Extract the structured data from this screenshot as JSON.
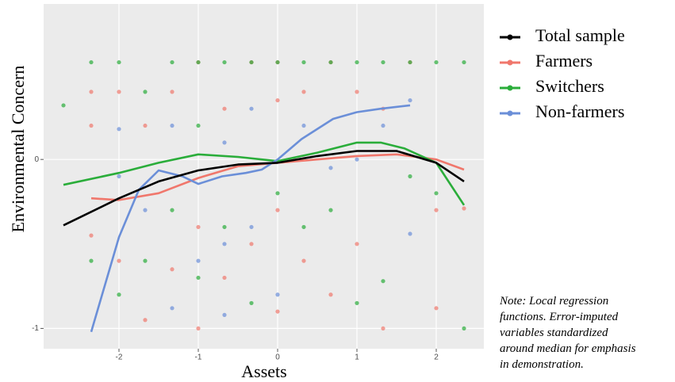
{
  "chart_data": {
    "type": "line",
    "xlabel": "Assets",
    "ylabel": "Environmental Concern",
    "xlim": [
      -2.95,
      2.6
    ],
    "ylim": [
      -1.12,
      0.92
    ],
    "xticks": [
      -2,
      -1,
      0,
      1,
      2
    ],
    "yticks": [
      -1,
      0
    ],
    "grid": true,
    "legend": "right",
    "note": [
      "Note:  Local regression",
      "functions. Error-imputed",
      "variables standardized",
      "around median for emphasis",
      "in demonstration."
    ],
    "series": [
      {
        "name": "Total sample",
        "color": "#000000",
        "x": [
          -2.7,
          -2,
          -1.5,
          -1,
          -0.5,
          0,
          0.5,
          1,
          1.5,
          2,
          2.35
        ],
        "values": [
          -0.39,
          -0.23,
          -0.13,
          -0.065,
          -0.03,
          -0.02,
          0.02,
          0.05,
          0.05,
          -0.02,
          -0.13
        ]
      },
      {
        "name": "Farmers",
        "color": "#f0776c",
        "x": [
          -2.35,
          -2,
          -1.5,
          -1,
          -0.5,
          0,
          0.5,
          1,
          1.5,
          2,
          2.35
        ],
        "values": [
          -0.23,
          -0.24,
          -0.2,
          -0.11,
          -0.04,
          -0.02,
          0,
          0.02,
          0.03,
          0,
          -0.06
        ],
        "points": {
          "x": [
            -2.35,
            -2.35,
            -2.35,
            -2,
            -2,
            -1.67,
            -1.67,
            -1.33,
            -1.33,
            -1,
            -1,
            -1,
            -0.67,
            -0.67,
            -0.33,
            -0.33,
            0,
            0,
            0,
            0,
            0.33,
            0.33,
            0.67,
            0.67,
            1,
            1,
            1.33,
            1.33,
            1.67,
            2,
            2,
            2.35
          ],
          "values": [
            0.4,
            0.2,
            -0.45,
            0.4,
            -0.6,
            0.2,
            -0.95,
            0.4,
            -0.65,
            0.575,
            -0.4,
            -1.0,
            0.3,
            -0.7,
            0.575,
            -0.5,
            0.575,
            0.35,
            -0.3,
            -0.9,
            0.4,
            -0.6,
            0.575,
            -0.8,
            0.4,
            -0.5,
            0.3,
            -1.0,
            0.575,
            -0.3,
            -0.88,
            -0.29
          ]
        }
      },
      {
        "name": "Switchers",
        "color": "#2aad3a",
        "x": [
          -2.7,
          -2,
          -1.5,
          -1,
          -0.5,
          0,
          0.5,
          1,
          1.3,
          1.6,
          2,
          2.35
        ],
        "values": [
          -0.15,
          -0.08,
          -0.02,
          0.03,
          0.015,
          -0.01,
          0.04,
          0.1,
          0.1,
          0.065,
          -0.02,
          -0.27
        ],
        "points": {
          "x": [
            -2.7,
            -2.35,
            -2.35,
            -2,
            -2,
            -1.67,
            -1.67,
            -1.33,
            -1.33,
            -1,
            -1,
            -1,
            -0.67,
            -0.67,
            -0.33,
            -0.33,
            0,
            0,
            0.33,
            0.33,
            0.67,
            0.67,
            1,
            1,
            1.33,
            1.33,
            1.67,
            1.67,
            2,
            2,
            2.35,
            2.35
          ],
          "values": [
            0.32,
            0.575,
            -0.6,
            0.575,
            -0.8,
            0.4,
            -0.6,
            0.575,
            -0.3,
            0.575,
            0.2,
            -0.7,
            0.575,
            -0.4,
            0.575,
            -0.85,
            0.575,
            -0.2,
            0.575,
            -0.4,
            0.575,
            -0.3,
            0.575,
            -0.85,
            0.575,
            -0.72,
            0.575,
            -0.1,
            0.575,
            -0.2,
            0.575,
            -1.0
          ]
        }
      },
      {
        "name": "Non-farmers",
        "color": "#6b8fd8",
        "x": [
          -2.35,
          -2,
          -1.75,
          -1.5,
          -1.2,
          -1,
          -0.7,
          -0.4,
          -0.2,
          0,
          0.3,
          0.7,
          1,
          1.3,
          1.67
        ],
        "values": [
          -1.02,
          -0.46,
          -0.18,
          -0.065,
          -0.1,
          -0.145,
          -0.1,
          -0.08,
          -0.06,
          0,
          0.12,
          0.24,
          0.28,
          0.3,
          0.32
        ],
        "points": {
          "x": [
            -2,
            -2,
            -1.67,
            -1.33,
            -1.33,
            -1,
            -0.67,
            -0.67,
            -0.67,
            -0.33,
            -0.33,
            0,
            0.33,
            0.67,
            1,
            1.33,
            1.67,
            1.67
          ],
          "values": [
            0.18,
            -0.1,
            -0.3,
            0.2,
            -0.88,
            -0.6,
            0.1,
            -0.5,
            -0.92,
            0.3,
            -0.4,
            -0.8,
            0.2,
            -0.05,
            0.0,
            0.2,
            0.35,
            -0.44
          ]
        }
      }
    ]
  }
}
